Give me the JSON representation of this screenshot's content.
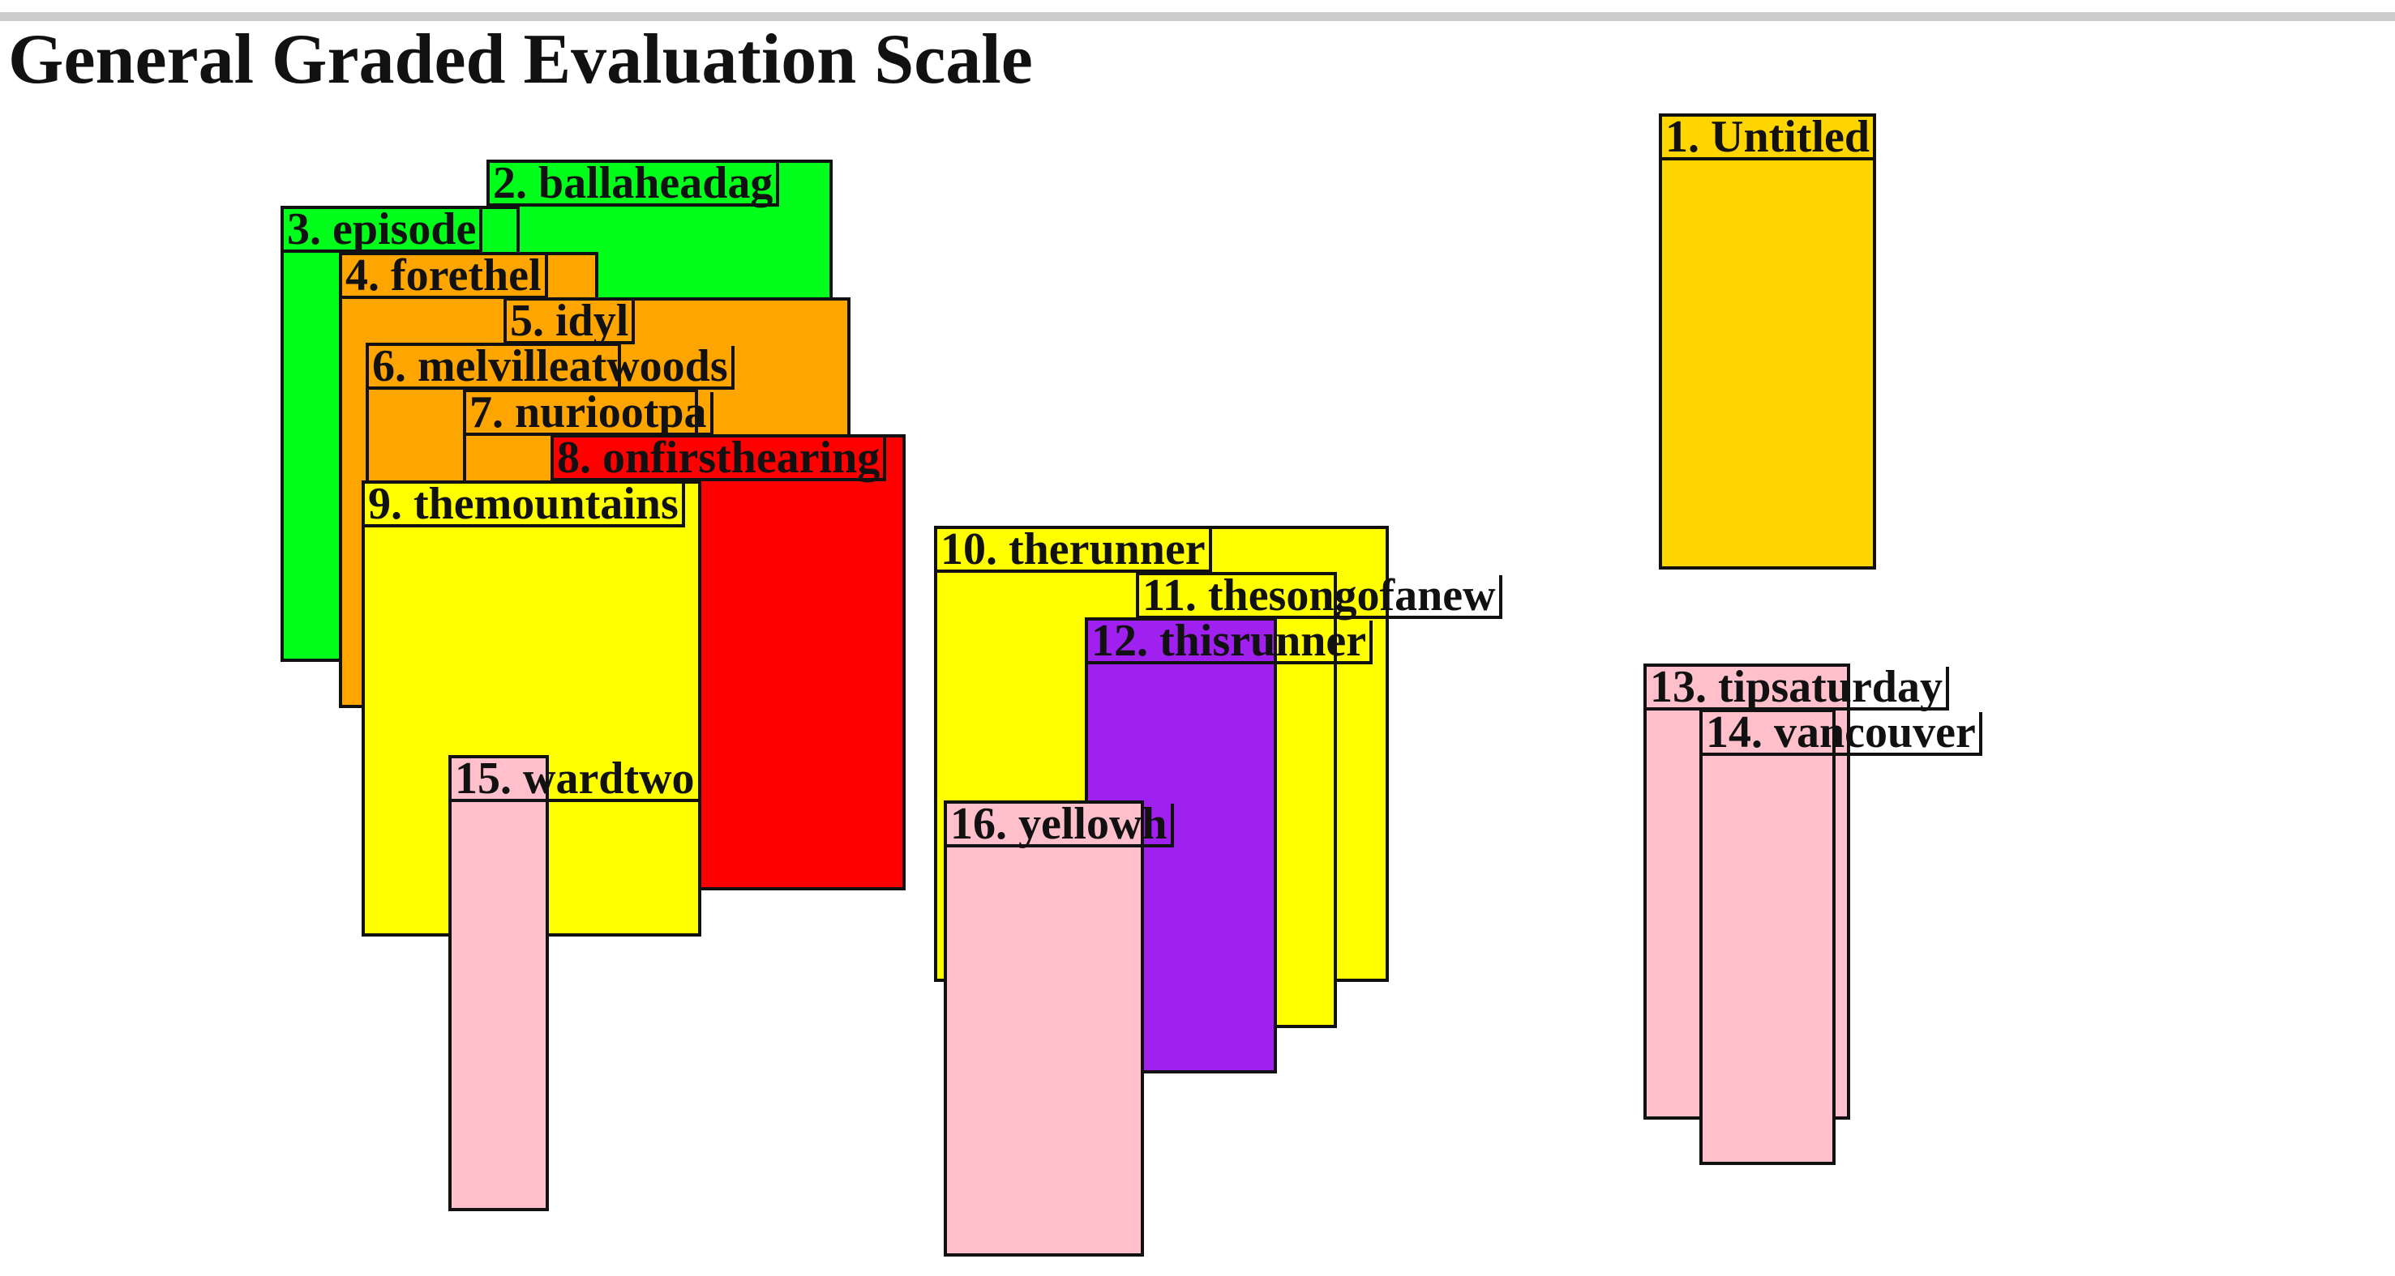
{
  "page": {
    "title": "General Graded Evaluation Scale"
  },
  "colors": {
    "gold": "#FFD500",
    "green": "#00FF1A",
    "orange": "#FFA500",
    "red": "#FF0000",
    "yellow": "#FFFF00",
    "purple": "#A020F0",
    "pink": "#FFC0CB",
    "border": "#111111"
  },
  "boxes": [
    {
      "number": "1",
      "label": "1. Untitled",
      "name": "Untitled",
      "color": "gold"
    },
    {
      "number": "2",
      "label": "2. ballaheadag",
      "name": "ballaheadag",
      "color": "green"
    },
    {
      "number": "3",
      "label": "3. episode",
      "name": "episode",
      "color": "green"
    },
    {
      "number": "4",
      "label": "4. forethel",
      "name": "forethel",
      "color": "orange"
    },
    {
      "number": "5",
      "label": "5. idyl",
      "name": "idyl",
      "color": "orange"
    },
    {
      "number": "6",
      "label": "6. melvilleatwoods",
      "name": "melvilleatwoods",
      "color": "orange"
    },
    {
      "number": "7",
      "label": "7. nuriootpa",
      "name": "nuriootpa",
      "color": "orange"
    },
    {
      "number": "8",
      "label": "8. onfirsthearing",
      "name": "onfirsthearing",
      "color": "red"
    },
    {
      "number": "9",
      "label": "9. themountains",
      "name": "themountains",
      "color": "yellow"
    },
    {
      "number": "10",
      "label": "10. therunner",
      "name": "therunner",
      "color": "yellow"
    },
    {
      "number": "11",
      "label": "11. thesongofanew",
      "name": "thesongofanew",
      "color": "yellow"
    },
    {
      "number": "12",
      "label": "12. thisrunner",
      "name": "thisrunner",
      "color": "purple"
    },
    {
      "number": "13",
      "label": "13. tipsaturday",
      "name": "tipsaturday",
      "color": "pink"
    },
    {
      "number": "14",
      "label": "14. vancouver",
      "name": "vancouver",
      "color": "pink"
    },
    {
      "number": "15",
      "label": "15. wardtwo",
      "name": "wardtwo",
      "color": "pink"
    },
    {
      "number": "16",
      "label": "16. yellowh",
      "name": "yellowh",
      "color": "pink"
    }
  ]
}
